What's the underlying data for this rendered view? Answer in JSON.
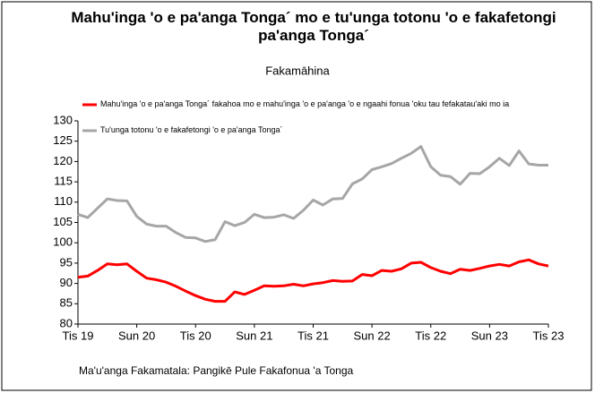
{
  "chart_data": {
    "type": "line",
    "title": "Mahu'inga 'o e pa'anga Tonga´ mo e tu'unga totonu 'o e fakafetongi pa'anga Tonga´",
    "subtitle": "Fakamāhina",
    "source": "Ma'u'anga Fakamatala: Pangikē Pule Fakafonua 'a Tonga",
    "categories": [
      "Tis 19",
      null,
      null,
      null,
      null,
      null,
      "Sun 20",
      null,
      null,
      null,
      null,
      null,
      "Tis 20",
      null,
      null,
      null,
      null,
      null,
      "Sun 21",
      null,
      null,
      null,
      null,
      null,
      "Tis 21",
      null,
      null,
      null,
      null,
      null,
      "Sun 22",
      null,
      null,
      null,
      null,
      null,
      "Tis 22",
      null,
      null,
      null,
      null,
      null,
      "Sun 23",
      null,
      null,
      null,
      null,
      null,
      "Tis 23"
    ],
    "series": [
      {
        "name": "Mahu'inga 'o e pa'anga Tonga´ fakahoa mo e mahu'inga 'o e pa'anga 'o e ngaahi fonua 'oku tau fefakatau'aki mo ia",
        "color": "#ff0000",
        "values": [
          91.5,
          91.8,
          93.2,
          94.8,
          94.6,
          94.8,
          93.0,
          91.3,
          90.9,
          90.3,
          89.3,
          88.1,
          87.0,
          86.1,
          85.6,
          85.6,
          87.9,
          87.3,
          88.3,
          89.4,
          89.3,
          89.4,
          89.8,
          89.4,
          89.9,
          90.2,
          90.7,
          90.5,
          90.6,
          92.2,
          91.9,
          93.2,
          93.0,
          93.6,
          95.0,
          95.2,
          93.9,
          93.0,
          92.4,
          93.5,
          93.2,
          93.7,
          94.3,
          94.7,
          94.3,
          95.3,
          95.8,
          94.8,
          94.3
        ]
      },
      {
        "name": "Tu'unga totonu 'o e fakafetongi 'o e pa'anga Tonga´",
        "color": "#a6a6a6",
        "values": [
          107.0,
          106.2,
          108.5,
          110.8,
          110.4,
          110.3,
          106.5,
          104.6,
          104.1,
          104.1,
          102.5,
          101.3,
          101.2,
          100.3,
          100.8,
          105.2,
          104.2,
          105.0,
          107.0,
          106.2,
          106.3,
          106.9,
          106.0,
          108.0,
          110.5,
          109.3,
          110.8,
          110.9,
          114.5,
          115.7,
          118.0,
          118.7,
          119.5,
          120.8,
          122.0,
          123.7,
          118.7,
          116.6,
          116.3,
          114.4,
          117.1,
          117.0,
          118.7,
          120.8,
          119.0,
          122.6,
          119.4,
          119.1,
          119.1
        ]
      }
    ],
    "ylim": [
      80,
      130
    ],
    "yticks": [
      80,
      85,
      90,
      95,
      100,
      105,
      110,
      115,
      120,
      125,
      130
    ],
    "grid": false
  }
}
